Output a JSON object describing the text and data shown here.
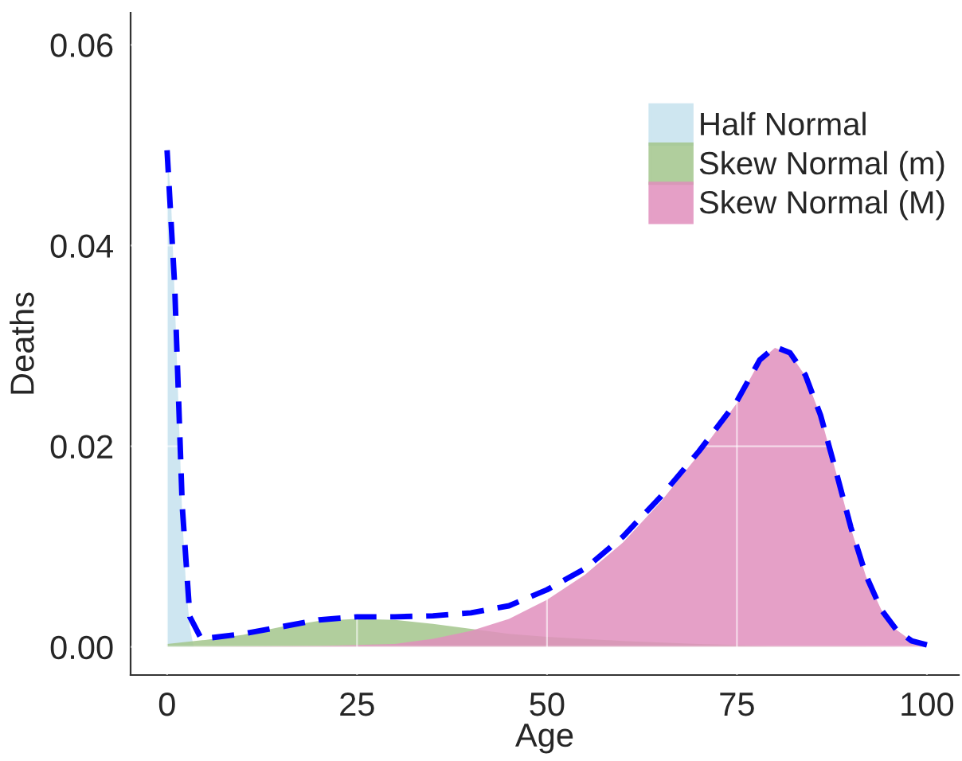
{
  "chart_data": {
    "type": "area",
    "xlabel": "Age",
    "ylabel": "Deaths",
    "xlim": [
      -4.8,
      104.2
    ],
    "ylim": [
      -0.0028,
      0.0632
    ],
    "xticks": [
      0,
      25,
      50,
      75,
      100
    ],
    "yticks": [
      {
        "value": 0,
        "label": "0.00"
      },
      {
        "value": 0.02,
        "label": "0.02"
      },
      {
        "value": 0.04,
        "label": "0.04"
      },
      {
        "value": 0.06,
        "label": "0.06"
      }
    ],
    "grid": true,
    "legend": "top right",
    "series": [
      {
        "name": "Half Normal",
        "color": "#c6e2ee",
        "x": [
          0,
          0.5,
          1,
          1.5,
          2,
          2.5,
          3,
          3.5
        ],
        "values": [
          0.0495,
          0.045,
          0.035,
          0.024,
          0.013,
          0.006,
          0.002,
          0
        ]
      },
      {
        "name": "Skew Normal (m)",
        "color": "#a3c68c",
        "x": [
          0,
          5,
          10,
          15,
          20,
          25,
          30,
          35,
          40,
          45,
          50,
          60,
          70,
          80,
          90,
          100
        ],
        "values": [
          0.0003,
          0.0007,
          0.0012,
          0.002,
          0.0026,
          0.0028,
          0.0027,
          0.0023,
          0.0018,
          0.0013,
          0.001,
          0.0006,
          0.0003,
          0.0001,
          0.0001,
          0
        ]
      },
      {
        "name": "Skew Normal (M)",
        "color": "#e18fbd",
        "x": [
          0,
          20,
          25,
          30,
          35,
          40,
          45,
          50,
          55,
          60,
          65,
          70,
          75,
          78,
          80,
          82,
          84,
          86,
          88,
          90,
          92,
          94,
          96,
          98,
          100
        ],
        "values": [
          0,
          0.0001,
          0.0002,
          0.0003,
          0.0008,
          0.0016,
          0.0028,
          0.0047,
          0.0072,
          0.0104,
          0.0145,
          0.0192,
          0.0243,
          0.0285,
          0.0298,
          0.0292,
          0.027,
          0.023,
          0.0175,
          0.0118,
          0.007,
          0.0037,
          0.0017,
          0.0006,
          0.0002
        ]
      },
      {
        "type": "line",
        "color": "#0000ff",
        "line_style": "dashed",
        "x": [
          0,
          1,
          2,
          3,
          4.5,
          10,
          15,
          20,
          25,
          30,
          35,
          40,
          45,
          50,
          55,
          60,
          65,
          70,
          75,
          78,
          80,
          82,
          84,
          86,
          88,
          90,
          92,
          94,
          96,
          98,
          100
        ],
        "values": [
          0.0495,
          0.036,
          0.014,
          0.003,
          0.0008,
          0.0013,
          0.002,
          0.0027,
          0.003,
          0.003,
          0.0031,
          0.0034,
          0.0041,
          0.0057,
          0.0078,
          0.011,
          0.015,
          0.0195,
          0.0245,
          0.0286,
          0.0299,
          0.0293,
          0.0271,
          0.0231,
          0.0176,
          0.0119,
          0.0071,
          0.0037,
          0.0017,
          0.0006,
          0.0002
        ]
      }
    ]
  }
}
